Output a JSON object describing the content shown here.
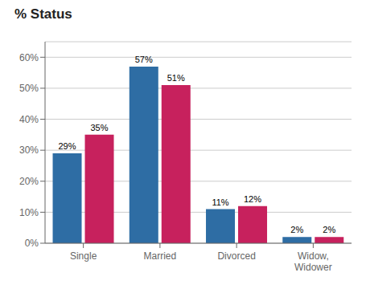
{
  "chart_data": {
    "type": "bar",
    "title": "% Status",
    "categories": [
      "Single",
      "Married",
      "Divorced",
      "Widow,\nWidower"
    ],
    "series": [
      {
        "color": "#2E6DA4",
        "values": [
          29,
          57,
          11,
          2
        ],
        "value_labels": [
          "29%",
          "57%",
          "11%",
          "2%"
        ]
      },
      {
        "color": "#C7215D",
        "values": [
          35,
          51,
          12,
          2
        ],
        "value_labels": [
          "35%",
          "51%",
          "12%",
          "2%"
        ]
      }
    ],
    "ylim": [
      0,
      65
    ],
    "yticks": [
      {
        "value": 0,
        "label": "0%"
      },
      {
        "value": 10,
        "label": "10%"
      },
      {
        "value": 20,
        "label": "20%"
      },
      {
        "value": 30,
        "label": "30%"
      },
      {
        "value": 40,
        "label": "40%"
      },
      {
        "value": 50,
        "label": "50%"
      },
      {
        "value": 60,
        "label": "60%"
      }
    ],
    "grid": true,
    "data_labels": true
  }
}
